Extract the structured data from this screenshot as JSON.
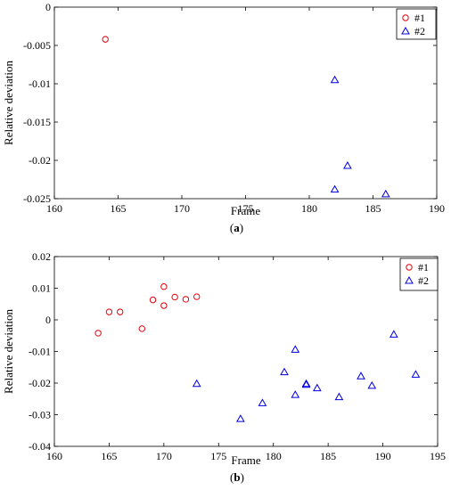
{
  "chart_data": [
    {
      "type": "scatter",
      "panel_label": "(a)",
      "panel_letter": "a",
      "xlabel": "Frame",
      "ylabel": "Relative deviation",
      "xlim": [
        160,
        190
      ],
      "ylim": [
        -0.025,
        0
      ],
      "xticks": [
        160,
        165,
        170,
        175,
        180,
        185,
        190
      ],
      "yticks": [
        0,
        -0.005,
        -0.01,
        -0.015,
        -0.02,
        -0.025
      ],
      "xtick_labels": [
        "160",
        "165",
        "170",
        "175",
        "180",
        "185",
        "190"
      ],
      "ytick_labels": [
        "0",
        "-0.005",
        "-0.01",
        "-0.015",
        "-0.02",
        "-0.025"
      ],
      "legend_position": "top-right",
      "grid": false,
      "series": [
        {
          "name": "#1",
          "marker": "circle",
          "color": "#e8000b",
          "x": [
            164
          ],
          "y": [
            -0.0042
          ]
        },
        {
          "name": "#2",
          "marker": "triangle",
          "color": "#0000e0",
          "x": [
            182,
            183,
            182,
            186
          ],
          "y": [
            -0.0095,
            -0.0207,
            -0.0238,
            -0.0244
          ]
        }
      ]
    },
    {
      "type": "scatter",
      "panel_label": "(b)",
      "panel_letter": "b",
      "xlabel": "Frame",
      "ylabel": "Relative deviation",
      "xlim": [
        160,
        195
      ],
      "ylim": [
        -0.04,
        0.02
      ],
      "xticks": [
        160,
        165,
        170,
        175,
        180,
        185,
        190,
        195
      ],
      "yticks": [
        0.02,
        0.01,
        0,
        -0.01,
        -0.02,
        -0.03,
        -0.04
      ],
      "xtick_labels": [
        "160",
        "165",
        "170",
        "175",
        "180",
        "185",
        "190",
        "195"
      ],
      "ytick_labels": [
        "0.02",
        "0.01",
        "0",
        "-0.01",
        "-0.02",
        "-0.03",
        "-0.04"
      ],
      "legend_position": "top-right",
      "grid": false,
      "series": [
        {
          "name": "#1",
          "marker": "circle",
          "color": "#e8000b",
          "x": [
            164,
            165,
            166,
            168,
            169,
            170,
            170,
            171,
            172,
            173
          ],
          "y": [
            -0.0042,
            0.0025,
            0.0025,
            -0.0028,
            0.0063,
            0.0105,
            0.0045,
            0.0072,
            0.0065,
            0.0073
          ]
        },
        {
          "name": "#2",
          "marker": "triangle",
          "color": "#0000e0",
          "x": [
            173,
            177,
            179,
            181,
            182,
            182,
            183,
            183,
            184,
            186,
            188,
            189,
            191,
            193
          ],
          "y": [
            -0.0202,
            -0.0313,
            -0.0263,
            -0.0165,
            -0.0094,
            -0.0237,
            -0.0205,
            -0.0202,
            -0.0216,
            -0.0244,
            -0.0178,
            -0.0208,
            -0.0046,
            -0.0173
          ]
        }
      ]
    }
  ]
}
